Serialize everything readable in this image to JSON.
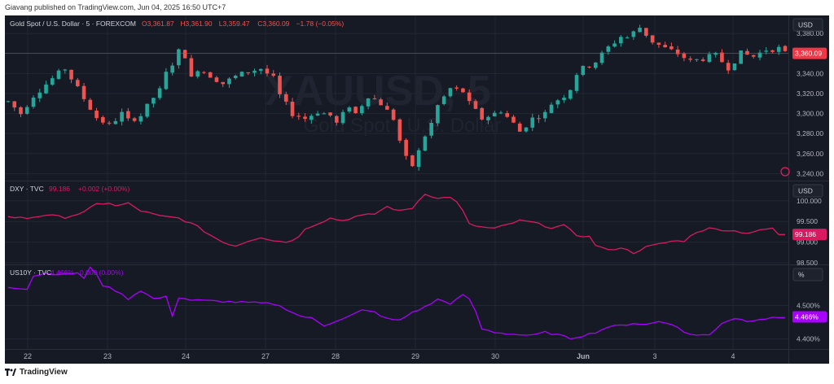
{
  "header": {
    "publisher_line": "Giavang published on TradingView.com, Jun 04, 2025 16:50 UTC+7"
  },
  "footer": {
    "brand": "TradingView"
  },
  "colors": {
    "background": "#161a25",
    "grid": "#232733",
    "up": "#26a69a",
    "down": "#ef5350",
    "dxy": "#d81b60",
    "us10y": "#aa00ff",
    "price_label": "#f23645",
    "text": "#b2b5be"
  },
  "x_axis": {
    "labels": [
      "22",
      "23",
      "24",
      "27",
      "28",
      "29",
      "30",
      "Jun",
      "3",
      "4"
    ]
  },
  "chart_data": [
    {
      "type": "line",
      "render": "candlestick",
      "id": "gold",
      "legend": {
        "title": "Gold Spot / U.S. Dollar · 5 · FOREXCOM",
        "ohlc": [
          "O3,361.87",
          "H3,361.90",
          "L3,359.47",
          "C3,360.09",
          "−1.78 (−0.05%)"
        ]
      },
      "watermark": {
        "symbol": "XAUUSD, 5",
        "name": "Gold Spot / U.S. Dollar"
      },
      "unit": "USD",
      "y_ticks": [
        "3,380.00",
        "3,360.00",
        "3,340.00",
        "3,320.00",
        "3,300.00",
        "3,280.00",
        "3,260.00",
        "3,240.00"
      ],
      "ylim": [
        3233,
        3398
      ],
      "last_value": 3360.09,
      "last_label": "3,360.09",
      "x_categories": [
        "22",
        "23",
        "24",
        "27",
        "28",
        "29",
        "30",
        "Jun",
        "3",
        "4"
      ],
      "values_approx": [
        [
          0,
          3312
        ],
        [
          2,
          3300
        ],
        [
          4,
          3318
        ],
        [
          7,
          3335
        ],
        [
          9,
          3345
        ],
        [
          12,
          3315
        ],
        [
          14,
          3296
        ],
        [
          16,
          3288
        ],
        [
          18,
          3300
        ],
        [
          19,
          3293
        ],
        [
          21,
          3298
        ],
        [
          23,
          3316
        ],
        [
          24,
          3323
        ],
        [
          25,
          3340
        ],
        [
          26,
          3350
        ],
        [
          27,
          3362
        ],
        [
          28,
          3358
        ],
        [
          29,
          3335
        ],
        [
          30,
          3345
        ],
        [
          32,
          3338
        ],
        [
          34,
          3330
        ],
        [
          36,
          3337
        ],
        [
          38,
          3342
        ],
        [
          40,
          3345
        ],
        [
          42,
          3335
        ],
        [
          43,
          3318
        ],
        [
          45,
          3300
        ],
        [
          47,
          3295
        ],
        [
          49,
          3302
        ],
        [
          51,
          3298
        ],
        [
          52,
          3290
        ],
        [
          54,
          3308
        ],
        [
          55,
          3300
        ],
        [
          57,
          3318
        ],
        [
          59,
          3310
        ],
        [
          61,
          3295
        ],
        [
          62,
          3273
        ],
        [
          63,
          3255
        ],
        [
          64,
          3248
        ],
        [
          65,
          3262
        ],
        [
          66,
          3278
        ],
        [
          67,
          3290
        ],
        [
          68,
          3308
        ],
        [
          70,
          3325
        ],
        [
          72,
          3322
        ],
        [
          73,
          3310
        ],
        [
          75,
          3295
        ],
        [
          77,
          3300
        ],
        [
          78,
          3303
        ],
        [
          80,
          3290
        ],
        [
          81,
          3282
        ],
        [
          83,
          3295
        ],
        [
          85,
          3300
        ],
        [
          86,
          3310
        ],
        [
          88,
          3318
        ],
        [
          89,
          3325
        ],
        [
          90,
          3340
        ],
        [
          91,
          3345
        ],
        [
          93,
          3352
        ],
        [
          95,
          3366
        ],
        [
          97,
          3377
        ],
        [
          98,
          3376
        ],
        [
          100,
          3386
        ],
        [
          102,
          3372
        ],
        [
          104,
          3365
        ],
        [
          106,
          3360
        ],
        [
          108,
          3352
        ],
        [
          110,
          3355
        ],
        [
          112,
          3358
        ],
        [
          114,
          3346
        ],
        [
          116,
          3360
        ],
        [
          118,
          3357
        ],
        [
          120,
          3364
        ],
        [
          122,
          3365
        ],
        [
          123,
          3360
        ]
      ]
    },
    {
      "type": "line",
      "id": "dxy",
      "legend": {
        "title": "DXY · TVC",
        "value": "99.186",
        "change": "+0.002 (+0.00%)"
      },
      "unit": "USD",
      "y_ticks": [
        "100.000",
        "99.500",
        "99.000",
        "98.500"
      ],
      "ylim": [
        98.46,
        100.47
      ],
      "last_value": 99.186,
      "last_label": "99.186",
      "values_approx": [
        [
          0,
          99.61
        ],
        [
          3,
          99.58
        ],
        [
          6,
          99.66
        ],
        [
          9,
          99.6
        ],
        [
          12,
          99.72
        ],
        [
          14,
          99.92
        ],
        [
          16,
          99.95
        ],
        [
          17,
          99.87
        ],
        [
          19,
          99.94
        ],
        [
          21,
          99.76
        ],
        [
          24,
          99.63
        ],
        [
          27,
          99.58
        ],
        [
          29,
          99.45
        ],
        [
          30,
          99.37
        ],
        [
          32,
          99.17
        ],
        [
          34,
          99.0
        ],
        [
          36,
          98.91
        ],
        [
          38,
          99.03
        ],
        [
          40,
          99.12
        ],
        [
          42,
          99.04
        ],
        [
          44,
          99.0
        ],
        [
          46,
          99.12
        ],
        [
          47,
          99.33
        ],
        [
          49,
          99.45
        ],
        [
          51,
          99.58
        ],
        [
          53,
          99.52
        ],
        [
          55,
          99.62
        ],
        [
          58,
          99.68
        ],
        [
          60,
          99.86
        ],
        [
          62,
          99.75
        ],
        [
          64,
          99.83
        ],
        [
          66,
          100.18
        ],
        [
          68,
          100.05
        ],
        [
          70,
          100.1
        ],
        [
          71,
          99.96
        ],
        [
          72,
          99.75
        ],
        [
          73,
          99.43
        ],
        [
          75,
          99.36
        ],
        [
          77,
          99.33
        ],
        [
          79,
          99.42
        ],
        [
          81,
          99.52
        ],
        [
          83,
          99.48
        ],
        [
          86,
          99.35
        ],
        [
          88,
          99.4
        ],
        [
          90,
          99.17
        ],
        [
          92,
          99.13
        ],
        [
          93,
          98.93
        ],
        [
          95,
          98.8
        ],
        [
          97,
          98.87
        ],
        [
          99,
          98.74
        ],
        [
          101,
          98.88
        ],
        [
          103,
          98.95
        ],
        [
          105,
          99.02
        ],
        [
          107,
          99.03
        ],
        [
          109,
          99.25
        ],
        [
          111,
          99.33
        ],
        [
          113,
          99.3
        ],
        [
          115,
          99.27
        ],
        [
          117,
          99.22
        ],
        [
          119,
          99.28
        ],
        [
          121,
          99.34
        ],
        [
          122,
          99.17
        ],
        [
          123,
          99.19
        ]
      ]
    },
    {
      "type": "line",
      "id": "us10y",
      "legend": {
        "title": "US10Y · TVC",
        "value": "4.466%",
        "change": "0.000 (0.00%)"
      },
      "unit": "%",
      "y_ticks": [
        "4.500%",
        "4.400%"
      ],
      "ylim": [
        4.37,
        4.62
      ],
      "last_value": 4.466,
      "last_label": "4.466%",
      "values_approx": [
        [
          0,
          4.555
        ],
        [
          3,
          4.55
        ],
        [
          4,
          4.588
        ],
        [
          6,
          4.596
        ],
        [
          9,
          4.592
        ],
        [
          11,
          4.598
        ],
        [
          12,
          4.58
        ],
        [
          13,
          4.612
        ],
        [
          14,
          4.595
        ],
        [
          15,
          4.56
        ],
        [
          17,
          4.545
        ],
        [
          19,
          4.52
        ],
        [
          21,
          4.545
        ],
        [
          23,
          4.52
        ],
        [
          25,
          4.525
        ],
        [
          26,
          4.47
        ],
        [
          27,
          4.524
        ],
        [
          29,
          4.516
        ],
        [
          42,
          4.505
        ],
        [
          44,
          4.49
        ],
        [
          46,
          4.47
        ],
        [
          48,
          4.462
        ],
        [
          50,
          4.44
        ],
        [
          52,
          4.455
        ],
        [
          54,
          4.468
        ],
        [
          56,
          4.485
        ],
        [
          58,
          4.48
        ],
        [
          60,
          4.46
        ],
        [
          62,
          4.455
        ],
        [
          64,
          4.48
        ],
        [
          66,
          4.495
        ],
        [
          68,
          4.518
        ],
        [
          70,
          4.506
        ],
        [
          72,
          4.53
        ],
        [
          73,
          4.52
        ],
        [
          74,
          4.48
        ],
        [
          75,
          4.43
        ],
        [
          77,
          4.42
        ],
        [
          80,
          4.414
        ],
        [
          83,
          4.41
        ],
        [
          85,
          4.42
        ],
        [
          87,
          4.412
        ],
        [
          89,
          4.402
        ],
        [
          91,
          4.41
        ],
        [
          93,
          4.42
        ],
        [
          95,
          4.436
        ],
        [
          97,
          4.44
        ],
        [
          99,
          4.447
        ],
        [
          101,
          4.443
        ],
        [
          103,
          4.452
        ],
        [
          105,
          4.446
        ],
        [
          107,
          4.42
        ],
        [
          109,
          4.411
        ],
        [
          111,
          4.412
        ],
        [
          113,
          4.448
        ],
        [
          115,
          4.462
        ],
        [
          117,
          4.454
        ],
        [
          119,
          4.46
        ],
        [
          121,
          4.462
        ],
        [
          123,
          4.466
        ]
      ]
    }
  ]
}
